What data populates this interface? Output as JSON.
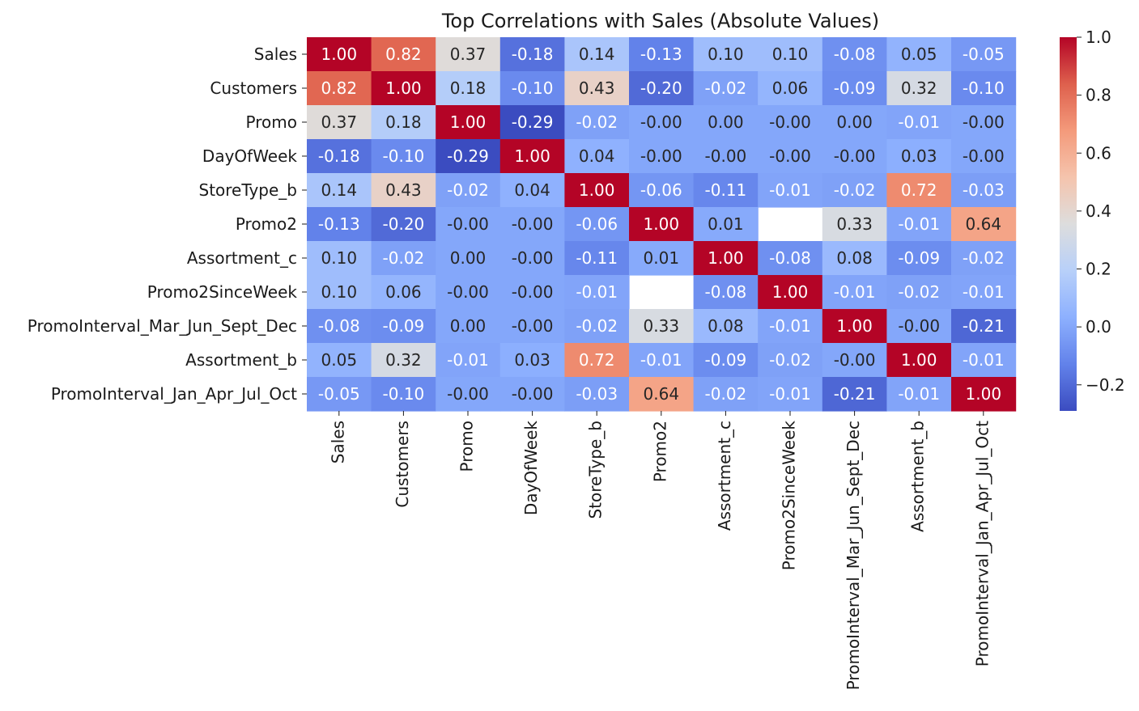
{
  "chart_data": {
    "type": "heatmap",
    "title": "Top Correlations with Sales (Absolute Values)",
    "row_labels": [
      "Sales",
      "Customers",
      "Promo",
      "DayOfWeek",
      "StoreType_b",
      "Promo2",
      "Assortment_c",
      "Promo2SinceWeek",
      "PromoInterval_Mar_Jun_Sept_Dec",
      "Assortment_b",
      "PromoInterval_Jan_Apr_Jul_Oct"
    ],
    "col_labels": [
      "Sales",
      "Customers",
      "Promo",
      "DayOfWeek",
      "StoreType_b",
      "Promo2",
      "Assortment_c",
      "Promo2SinceWeek",
      "PromoInterval_Mar_Jun_Sept_Dec",
      "Assortment_b",
      "PromoInterval_Jan_Apr_Jul_Oct"
    ],
    "values": [
      [
        1.0,
        0.82,
        0.37,
        -0.18,
        0.14,
        -0.13,
        0.1,
        0.1,
        -0.08,
        0.05,
        -0.05
      ],
      [
        0.82,
        1.0,
        0.18,
        -0.1,
        0.43,
        -0.2,
        -0.02,
        0.06,
        -0.09,
        0.32,
        -0.1
      ],
      [
        0.37,
        0.18,
        1.0,
        -0.29,
        -0.02,
        -0.0,
        0.0,
        -0.0,
        0.0,
        -0.01,
        -0.0
      ],
      [
        -0.18,
        -0.1,
        -0.29,
        1.0,
        0.04,
        -0.0,
        -0.0,
        -0.0,
        -0.0,
        0.03,
        -0.0
      ],
      [
        0.14,
        0.43,
        -0.02,
        0.04,
        1.0,
        -0.06,
        -0.11,
        -0.01,
        -0.02,
        0.72,
        -0.03
      ],
      [
        -0.13,
        -0.2,
        -0.0,
        -0.0,
        -0.06,
        1.0,
        0.01,
        null,
        0.33,
        -0.01,
        0.64
      ],
      [
        0.1,
        -0.02,
        0.0,
        -0.0,
        -0.11,
        0.01,
        1.0,
        -0.08,
        0.08,
        -0.09,
        -0.02
      ],
      [
        0.1,
        0.06,
        -0.0,
        -0.0,
        -0.01,
        null,
        -0.08,
        1.0,
        -0.01,
        -0.02,
        -0.01
      ],
      [
        -0.08,
        -0.09,
        0.0,
        -0.0,
        -0.02,
        0.33,
        0.08,
        -0.01,
        1.0,
        -0.0,
        -0.21
      ],
      [
        0.05,
        0.32,
        -0.01,
        0.03,
        0.72,
        -0.01,
        -0.09,
        -0.02,
        -0.0,
        1.0,
        -0.01
      ],
      [
        -0.05,
        -0.1,
        -0.0,
        -0.0,
        -0.03,
        0.64,
        -0.02,
        -0.01,
        -0.21,
        -0.01,
        1.0
      ]
    ],
    "cell_labels": [
      [
        "1.00",
        "0.82",
        "0.37",
        "-0.18",
        "0.14",
        "-0.13",
        "0.10",
        "0.10",
        "-0.08",
        "0.05",
        "-0.05"
      ],
      [
        "0.82",
        "1.00",
        "0.18",
        "-0.10",
        "0.43",
        "-0.20",
        "-0.02",
        "0.06",
        "-0.09",
        "0.32",
        "-0.10"
      ],
      [
        "0.37",
        "0.18",
        "1.00",
        "-0.29",
        "-0.02",
        "-0.00",
        "0.00",
        "-0.00",
        "0.00",
        "-0.01",
        "-0.00"
      ],
      [
        "-0.18",
        "-0.10",
        "-0.29",
        "1.00",
        "0.04",
        "-0.00",
        "-0.00",
        "-0.00",
        "-0.00",
        "0.03",
        "-0.00"
      ],
      [
        "0.14",
        "0.43",
        "-0.02",
        "0.04",
        "1.00",
        "-0.06",
        "-0.11",
        "-0.01",
        "-0.02",
        "0.72",
        "-0.03"
      ],
      [
        "-0.13",
        "-0.20",
        "-0.00",
        "-0.00",
        "-0.06",
        "1.00",
        "0.01",
        "",
        "0.33",
        "-0.01",
        "0.64"
      ],
      [
        "0.10",
        "-0.02",
        "0.00",
        "-0.00",
        "-0.11",
        "0.01",
        "1.00",
        "-0.08",
        "0.08",
        "-0.09",
        "-0.02"
      ],
      [
        "0.10",
        "0.06",
        "-0.00",
        "-0.00",
        "-0.01",
        "",
        "-0.08",
        "1.00",
        "-0.01",
        "-0.02",
        "-0.01"
      ],
      [
        "-0.08",
        "-0.09",
        "0.00",
        "-0.00",
        "-0.02",
        "0.33",
        "0.08",
        "-0.01",
        "1.00",
        "-0.00",
        "-0.21"
      ],
      [
        "0.05",
        "0.32",
        "-0.01",
        "0.03",
        "0.72",
        "-0.01",
        "-0.09",
        "-0.02",
        "-0.00",
        "1.00",
        "-0.01"
      ],
      [
        "-0.05",
        "-0.10",
        "-0.00",
        "-0.00",
        "-0.03",
        "0.64",
        "-0.02",
        "-0.01",
        "-0.21",
        "-0.01",
        "1.00"
      ]
    ],
    "colormap": "coolwarm",
    "vmin": -0.29,
    "vmax": 1.0,
    "colorbar_ticks": [
      1.0,
      0.8,
      0.6,
      0.4,
      0.2,
      0.0,
      -0.2
    ],
    "colorbar_tick_labels": [
      "1.0",
      "0.8",
      "0.6",
      "0.4",
      "0.2",
      "0.0",
      "−0.2"
    ],
    "xlabel": "",
    "ylabel": ""
  }
}
